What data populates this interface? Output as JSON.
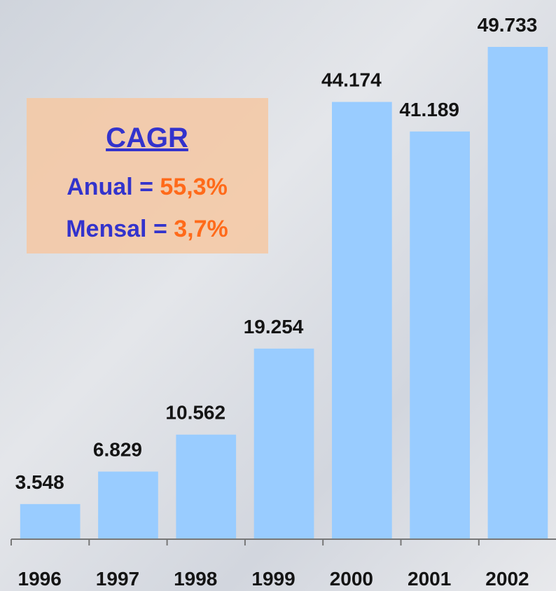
{
  "chart_data": {
    "type": "bar",
    "categories": [
      "1996",
      "1997",
      "1998",
      "1999",
      "2000",
      "2001",
      "2002"
    ],
    "values": [
      3548,
      6829,
      10562,
      19254,
      44174,
      41189,
      49733
    ],
    "value_labels": [
      "3.548",
      "6.829",
      "10.562",
      "19.254",
      "44.174",
      "41.189",
      "49.733"
    ],
    "color": "#99ccff",
    "ylim": [
      0,
      52350
    ],
    "annotation": {
      "title": "CAGR",
      "line1_label": "Anual = ",
      "line1_value": "55,3%",
      "line2_label": "Mensal = ",
      "line2_value": "3,7%"
    }
  }
}
